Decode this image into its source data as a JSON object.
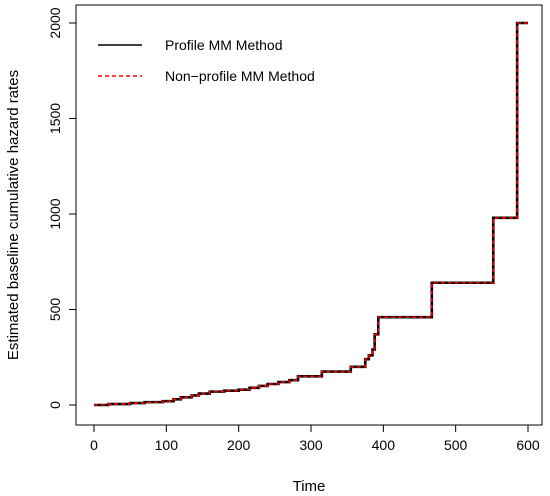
{
  "chart_data": {
    "type": "line",
    "title": "",
    "xlabel": "Time",
    "ylabel": "Estimated baseline cumulative hazard rates",
    "xlim": [
      0,
      600
    ],
    "ylim": [
      0,
      2000
    ],
    "x_ticks": [
      0,
      100,
      200,
      300,
      400,
      500,
      600
    ],
    "y_ticks": [
      0,
      500,
      1000,
      1500,
      2000
    ],
    "grid": false,
    "legend_position": "top-left",
    "series": [
      {
        "name": "Profile MM Method",
        "color": "#000000",
        "style": "solid",
        "x": [
          0,
          20,
          50,
          70,
          95,
          110,
          120,
          135,
          145,
          160,
          180,
          200,
          215,
          228,
          240,
          255,
          270,
          282,
          315,
          355,
          375,
          380,
          385,
          388,
          393,
          467,
          552,
          585,
          600
        ],
        "y": [
          0,
          5,
          10,
          15,
          20,
          30,
          40,
          50,
          60,
          70,
          75,
          80,
          90,
          100,
          110,
          120,
          130,
          150,
          175,
          200,
          240,
          260,
          290,
          370,
          460,
          640,
          980,
          2000,
          2000
        ]
      },
      {
        "name": "Non−profile MM Method",
        "color": "#ff0000",
        "style": "dashed",
        "x": [
          0,
          20,
          50,
          70,
          95,
          110,
          120,
          135,
          145,
          160,
          180,
          200,
          215,
          228,
          240,
          255,
          270,
          282,
          315,
          355,
          375,
          380,
          385,
          388,
          393,
          467,
          552,
          585,
          600
        ],
        "y": [
          0,
          5,
          10,
          15,
          20,
          30,
          40,
          50,
          60,
          70,
          75,
          80,
          90,
          100,
          110,
          120,
          130,
          150,
          175,
          200,
          240,
          260,
          290,
          370,
          460,
          640,
          980,
          2000,
          2000
        ]
      }
    ]
  }
}
